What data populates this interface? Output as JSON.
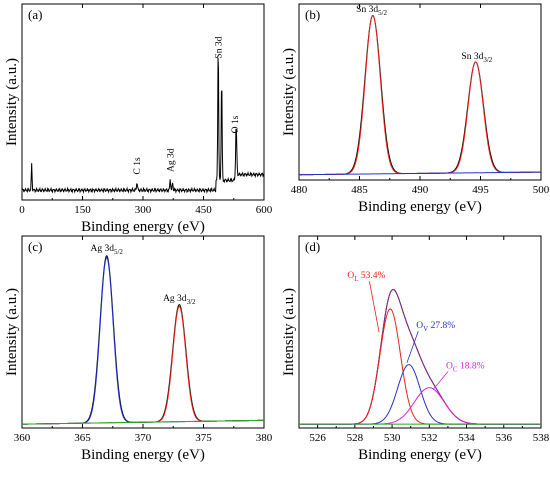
{
  "chart_data": [
    {
      "panel": "(a)",
      "type": "line",
      "xlabel": "Binding energy (eV)",
      "ylabel": "Intensity (a.u.)",
      "xlim": [
        0,
        600
      ],
      "ylim": [
        0,
        100
      ],
      "xticks": [
        0,
        150,
        300,
        450,
        600
      ],
      "annotations": [
        {
          "text": "C 1s",
          "x": 285
        },
        {
          "text": "Ag 3d",
          "x": 368
        },
        {
          "text": "Sn 3d",
          "x": 487
        },
        {
          "text": "O 1s",
          "x": 531
        }
      ],
      "series": [
        {
          "color": "#000000",
          "baseline": 5,
          "peaks": [
            {
              "x": 24,
              "h": 14,
              "w": 0.9
            },
            {
              "x": 285,
              "h": 4,
              "w": 1.2
            },
            {
              "x": 367.5,
              "h": 6,
              "w": 1
            },
            {
              "x": 373.5,
              "h": 4,
              "w": 1
            },
            {
              "x": 486.5,
              "h": 70,
              "w": 1.1
            },
            {
              "x": 495,
              "h": 53,
              "w": 1.1
            },
            {
              "x": 531,
              "h": 25,
              "w": 1.4
            }
          ],
          "steps": [
            {
              "x": 480,
              "d": 5
            },
            {
              "x": 530,
              "d": 3
            }
          ]
        }
      ]
    },
    {
      "panel": "(b)",
      "type": "line",
      "xlabel": "Binding energy (eV)",
      "ylabel": "Intensity (a.u.)",
      "xlim": [
        480,
        500
      ],
      "ylim": [
        0,
        100
      ],
      "xticks": [
        480,
        485,
        490,
        495,
        500
      ],
      "annotations": [
        {
          "text": "Sn 3d",
          "sub": "5/2",
          "x": 486.0
        },
        {
          "text": "Sn 3d",
          "sub": "3/2",
          "x": 494.7
        }
      ],
      "series": [
        {
          "color": "#000000",
          "baseline": 3,
          "slope": 1.5,
          "peaks": [
            {
              "x": 486.1,
              "h": 90,
              "w": 0.65
            },
            {
              "x": 494.6,
              "h": 63,
              "w": 0.65
            }
          ]
        },
        {
          "color": "#e8221c",
          "baseline": 3,
          "slope": 1.5,
          "peaks": [
            {
              "x": 486.1,
              "h": 90,
              "w": 0.62
            },
            {
              "x": 494.6,
              "h": 63,
              "w": 0.62
            }
          ]
        },
        {
          "color": "#2233cc",
          "baseline": 3,
          "slope": 1.5,
          "peaks": []
        }
      ]
    },
    {
      "panel": "(c)",
      "type": "line",
      "xlabel": "Binding energy (eV)",
      "ylabel": "Intensity (a.u.)",
      "xlim": [
        360,
        380
      ],
      "ylim": [
        0,
        100
      ],
      "xticks": [
        360,
        365,
        370,
        375,
        380
      ],
      "annotations": [
        {
          "text": "Ag 3d",
          "sub": "5/2",
          "x": 367.0
        },
        {
          "text": "Ag 3d",
          "sub": "3/2",
          "x": 373.0
        }
      ],
      "series": [
        {
          "color": "#000000",
          "baseline": 2,
          "slope": 2,
          "peaks": [
            {
              "x": 367.0,
              "h": 87,
              "w": 0.55
            },
            {
              "x": 373.0,
              "h": 61,
              "w": 0.55
            }
          ]
        },
        {
          "color": "#2233cc",
          "baseline": 2,
          "slope": 2,
          "peaks": [
            {
              "x": 367.0,
              "h": 86,
              "w": 0.53
            }
          ]
        },
        {
          "color": "#e8221c",
          "baseline": 2,
          "slope": 2,
          "peaks": [
            {
              "x": 373.0,
              "h": 60,
              "w": 0.53
            }
          ]
        },
        {
          "color": "#22aa22",
          "baseline": 2,
          "slope": 2,
          "peaks": []
        }
      ]
    },
    {
      "panel": "(d)",
      "type": "line",
      "xlabel": "Binding energy (eV)",
      "ylabel": "Intensity (a.u.)",
      "xlim": [
        525,
        538
      ],
      "ylim": [
        0,
        100
      ],
      "xticks": [
        526,
        528,
        530,
        532,
        534,
        536,
        538
      ],
      "annotations": [
        {
          "text": "O",
          "sub": "L",
          "rest": " 53.4%",
          "x": 527.6,
          "y": 78,
          "color": "#e8221c"
        },
        {
          "text": "O",
          "sub": "V",
          "rest": " 27.8%",
          "x": 531.3,
          "y": 52,
          "color": "#2233cc"
        },
        {
          "text": "O",
          "sub": "C",
          "rest": " 18.8%",
          "x": 532.9,
          "y": 31,
          "color": "#dd22dd"
        }
      ],
      "series": [
        {
          "color": "#000000",
          "baseline": 2,
          "slope": 0,
          "peaks": [
            {
              "x": 529.9,
              "h": 60,
              "w": 0.55
            },
            {
              "x": 530.9,
              "h": 31,
              "w": 0.6
            },
            {
              "x": 532.0,
              "h": 19,
              "w": 0.8
            }
          ]
        },
        {
          "color": "#8b2b8b",
          "baseline": 2,
          "slope": 0,
          "peaks": [
            {
              "x": 529.9,
              "h": 60,
              "w": 0.55
            },
            {
              "x": 530.9,
              "h": 31,
              "w": 0.6
            },
            {
              "x": 532.0,
              "h": 19,
              "w": 0.8
            }
          ]
        },
        {
          "color": "#e8221c",
          "baseline": 2,
          "slope": 0,
          "peaks": [
            {
              "x": 529.9,
              "h": 60,
              "w": 0.55
            }
          ]
        },
        {
          "color": "#2233cc",
          "baseline": 2,
          "slope": 0,
          "peaks": [
            {
              "x": 530.9,
              "h": 31,
              "w": 0.6
            }
          ]
        },
        {
          "color": "#dd22dd",
          "baseline": 2,
          "slope": 0,
          "peaks": [
            {
              "x": 532.0,
              "h": 19,
              "w": 0.8
            }
          ]
        },
        {
          "color": "#22aa22",
          "baseline": 2,
          "slope": 0,
          "peaks": []
        }
      ]
    }
  ]
}
